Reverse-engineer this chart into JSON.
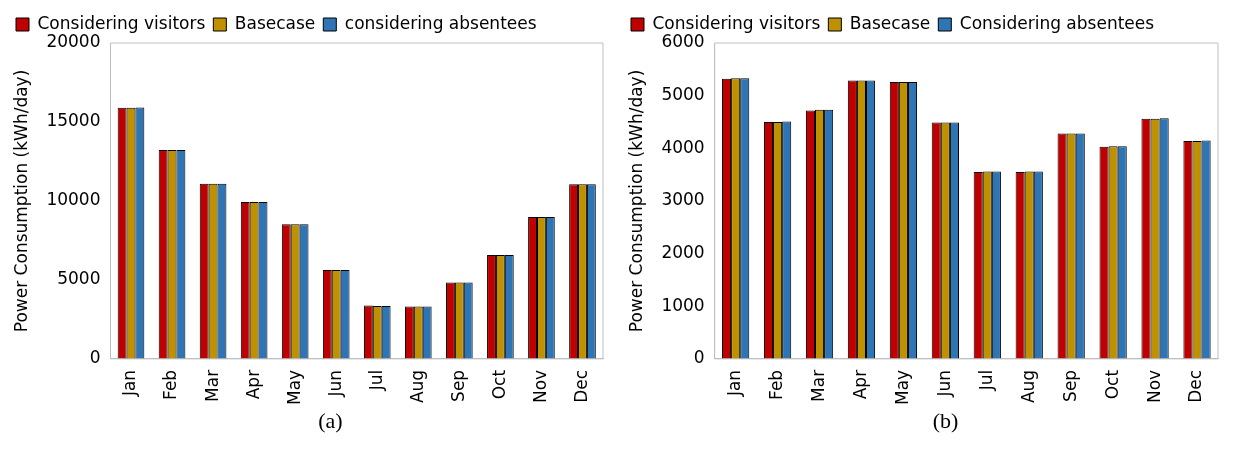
{
  "chart_data": [
    {
      "type": "bar",
      "ylabel": "Power Consumption (kWh/day)",
      "categories": [
        "Jan",
        "Feb",
        "Mar",
        "Apr",
        "May",
        "Jun",
        "Jul",
        "Aug",
        "Sep",
        "Oct",
        "Nov",
        "Dec"
      ],
      "ylim": [
        0,
        20000
      ],
      "yticks": [
        0,
        5000,
        10000,
        15000,
        20000
      ],
      "grid": false,
      "legend": "top",
      "annotations": [
        "(a)"
      ],
      "series": [
        {
          "name": "Considering visitors",
          "color": "#c00000",
          "values": [
            15900,
            13230,
            11080,
            9940,
            8520,
            5630,
            3380,
            3320,
            4830,
            6580,
            8980,
            11050
          ]
        },
        {
          "name": "Basecase",
          "color": "#bf9000",
          "values": [
            15900,
            13230,
            11080,
            9940,
            8520,
            5630,
            3350,
            3320,
            4830,
            6580,
            8980,
            11050
          ]
        },
        {
          "name": "considering absentees",
          "color": "#2e75b6",
          "values": [
            15920,
            13230,
            11080,
            9940,
            8520,
            5630,
            3340,
            3320,
            4840,
            6580,
            8980,
            11050
          ]
        }
      ]
    },
    {
      "type": "bar",
      "ylabel": "Power Consumption (kWh/day)",
      "categories": [
        "Jan",
        "Feb",
        "Mar",
        "Apr",
        "May",
        "Jun",
        "Jul",
        "Aug",
        "Sep",
        "Oct",
        "Nov",
        "Dec"
      ],
      "ylim": [
        0,
        6000
      ],
      "yticks": [
        0,
        1000,
        2000,
        3000,
        4000,
        5000,
        6000
      ],
      "grid": false,
      "legend": "top",
      "annotations": [
        "(b)"
      ],
      "series": [
        {
          "name": "Considering visitors",
          "color": "#c00000",
          "values": [
            5320,
            4500,
            4720,
            5290,
            5260,
            4490,
            3550,
            3550,
            4280,
            4030,
            4560,
            4140
          ]
        },
        {
          "name": "Basecase",
          "color": "#bf9000",
          "values": [
            5330,
            4500,
            4730,
            5290,
            5260,
            4490,
            3560,
            3560,
            4280,
            4040,
            4560,
            4140
          ]
        },
        {
          "name": "Considering absentees",
          "color": "#2e75b6",
          "values": [
            5330,
            4510,
            4730,
            5290,
            5260,
            4490,
            3560,
            3560,
            4280,
            4040,
            4570,
            4150
          ]
        }
      ]
    }
  ]
}
